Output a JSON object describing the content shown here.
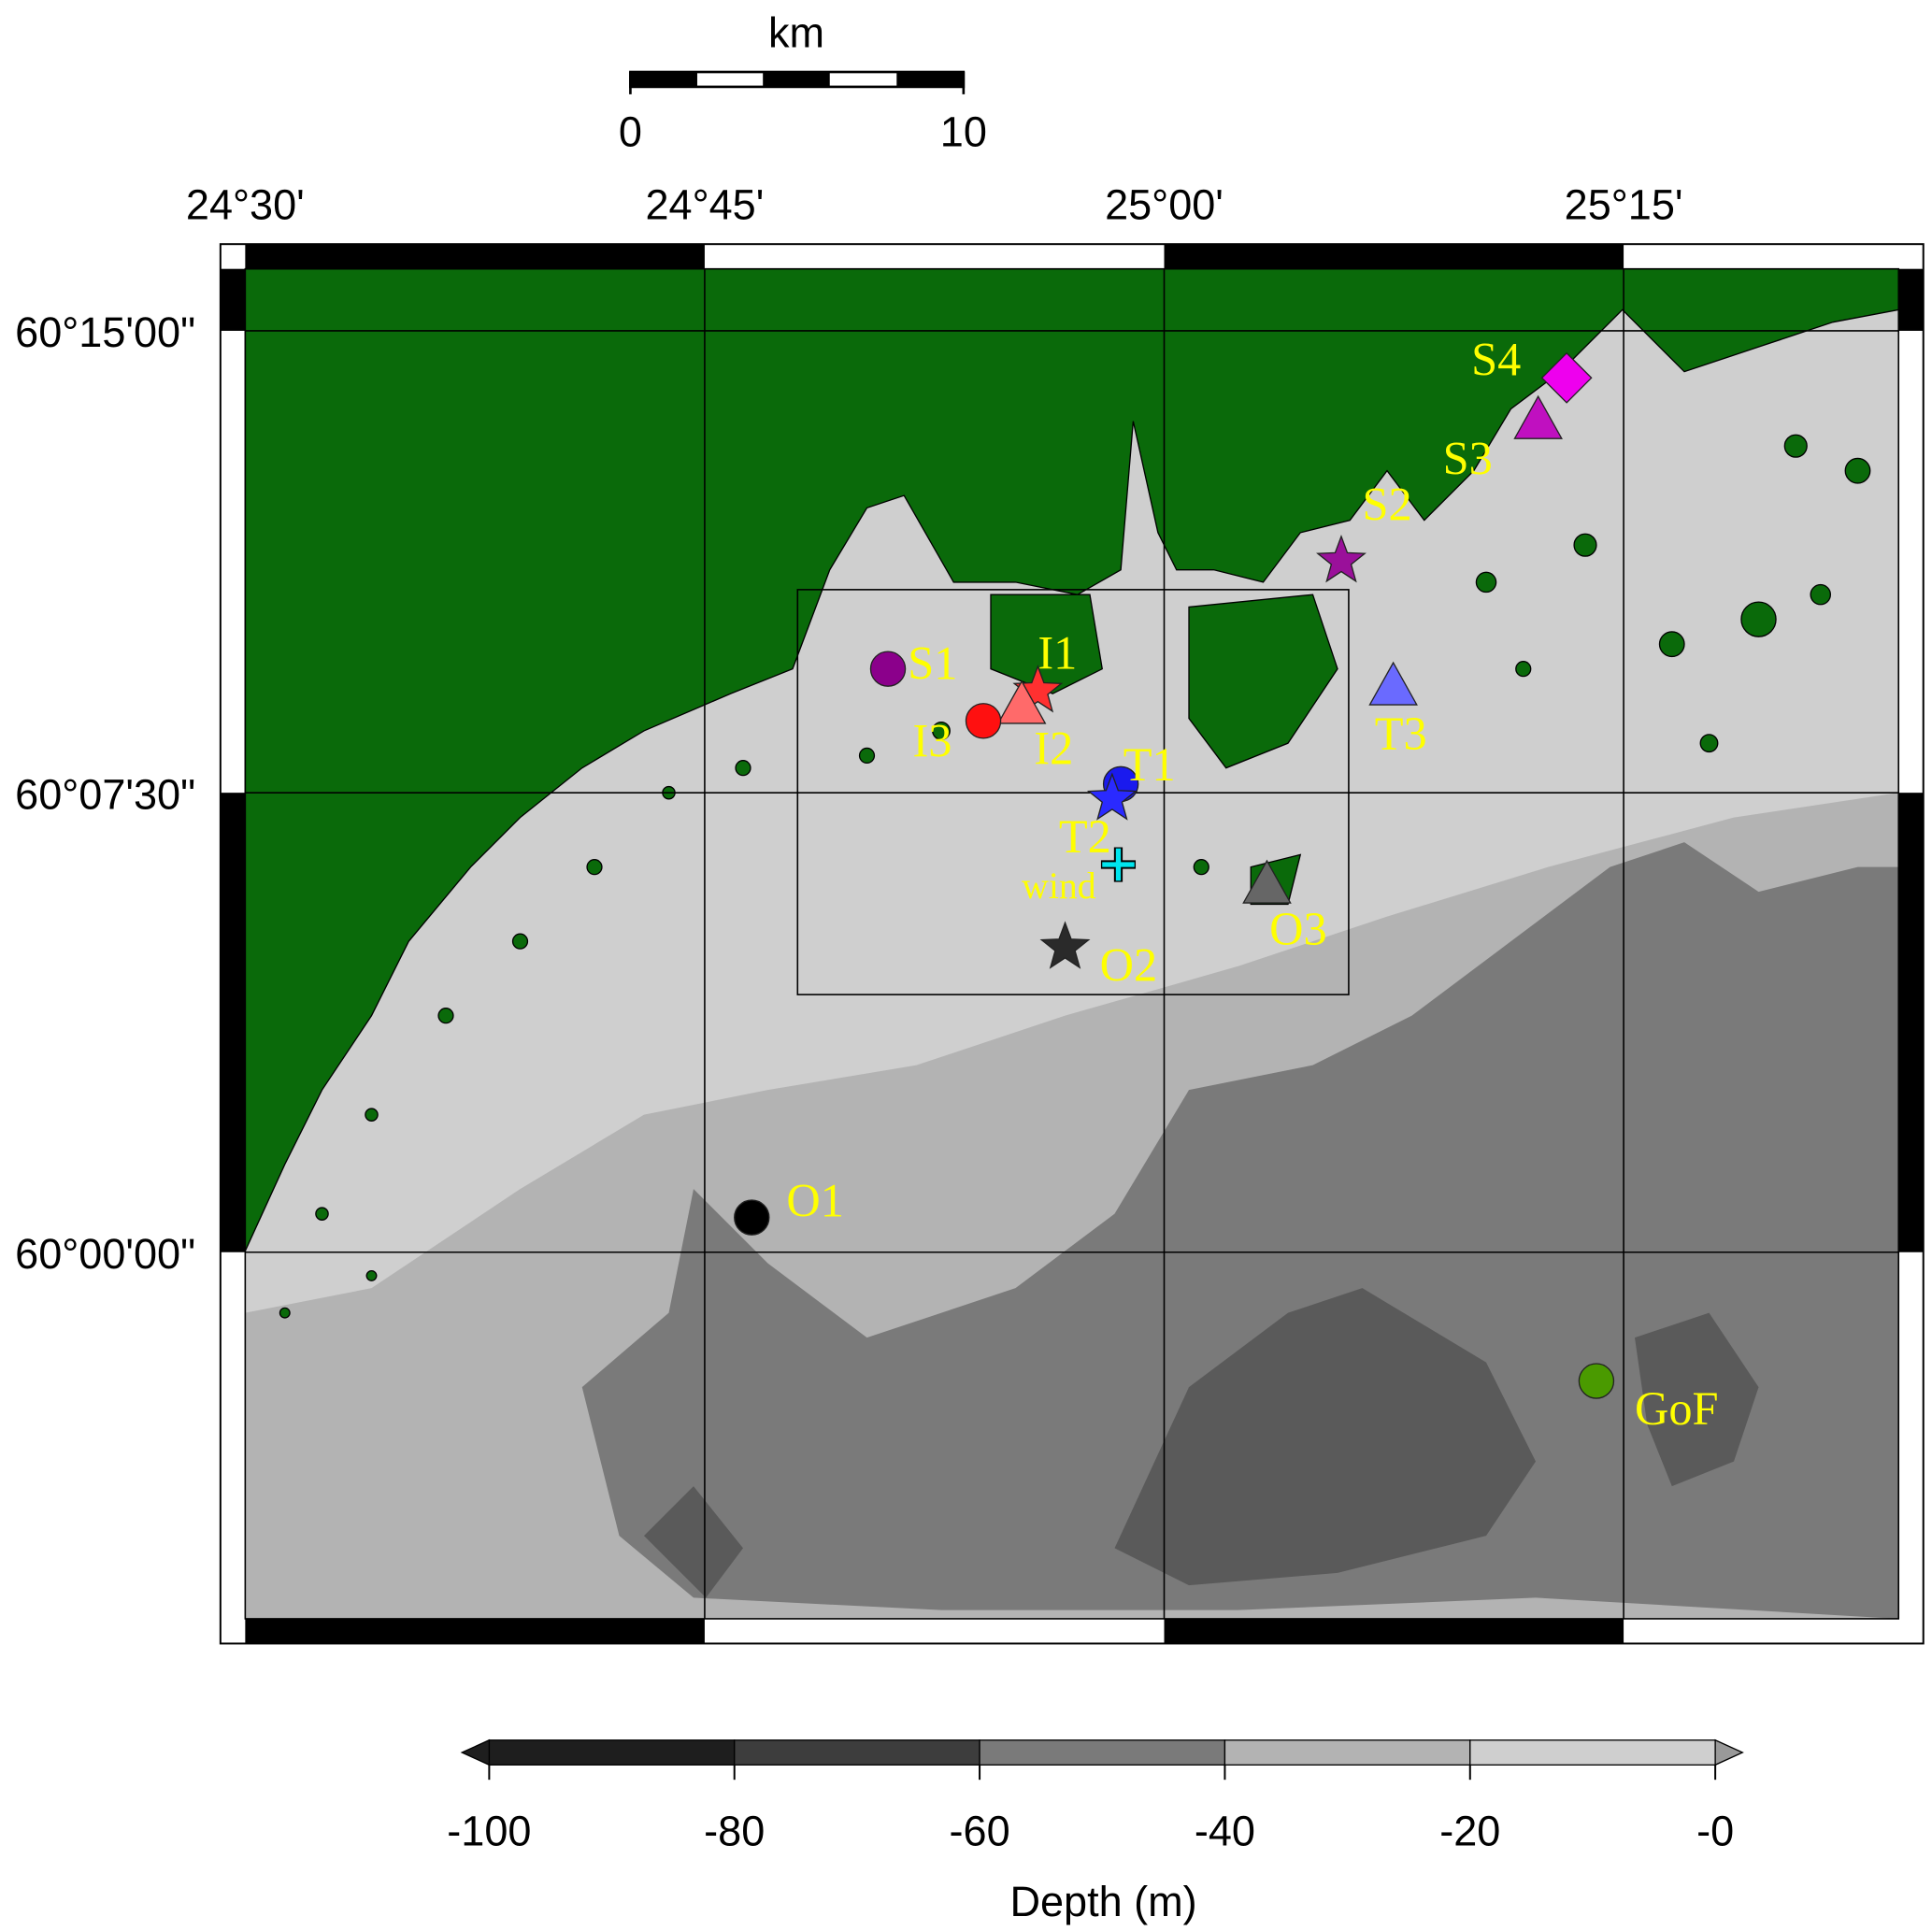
{
  "scale_bar": {
    "unit": "km",
    "ticks": [
      "0",
      "10"
    ]
  },
  "longitude_labels": [
    "24°30'",
    "24°45'",
    "25°00'",
    "25°15'"
  ],
  "latitude_labels": [
    "60°15'00\"",
    "60°07'30\"",
    "60°00'00\""
  ],
  "colorbar": {
    "title": "Depth (m)",
    "ticks": [
      "-100",
      "-80",
      "-60",
      "-40",
      "-20",
      "-0"
    ],
    "colors": [
      "#1e1e1e",
      "#3d3d3d",
      "#7a7a7a",
      "#b3b3b3",
      "#cfcfcf"
    ],
    "extend": "both"
  },
  "colors": {
    "land": "#0a6a0a",
    "label": "#ffff00"
  },
  "stations": [
    {
      "name": "S1",
      "symbol": "circle",
      "color": "#8b008b"
    },
    {
      "name": "S2",
      "symbol": "star",
      "color": "#9a109a"
    },
    {
      "name": "S3",
      "symbol": "triangle",
      "color": "#c010c0"
    },
    {
      "name": "S4",
      "symbol": "diamond",
      "color": "#ee00ee"
    },
    {
      "name": "I1",
      "symbol": "star",
      "color": "#ff3030"
    },
    {
      "name": "I2",
      "symbol": "triangle",
      "color": "#ff6a6a"
    },
    {
      "name": "I3",
      "symbol": "circle",
      "color": "#ff1010"
    },
    {
      "name": "T1",
      "symbol": "circle",
      "color": "#1a1aee"
    },
    {
      "name": "T2",
      "symbol": "star",
      "color": "#2a2aff"
    },
    {
      "name": "T3",
      "symbol": "triangle",
      "color": "#6a6aff"
    },
    {
      "name": "O1",
      "symbol": "circle",
      "color": "#000000"
    },
    {
      "name": "O2",
      "symbol": "star",
      "color": "#2a2a2a"
    },
    {
      "name": "O3",
      "symbol": "triangle",
      "color": "#666666"
    },
    {
      "name": "GoF",
      "symbol": "circle",
      "color": "#4a9a00"
    },
    {
      "name": "wind",
      "symbol": "cross",
      "color": "#00e5ee"
    }
  ]
}
